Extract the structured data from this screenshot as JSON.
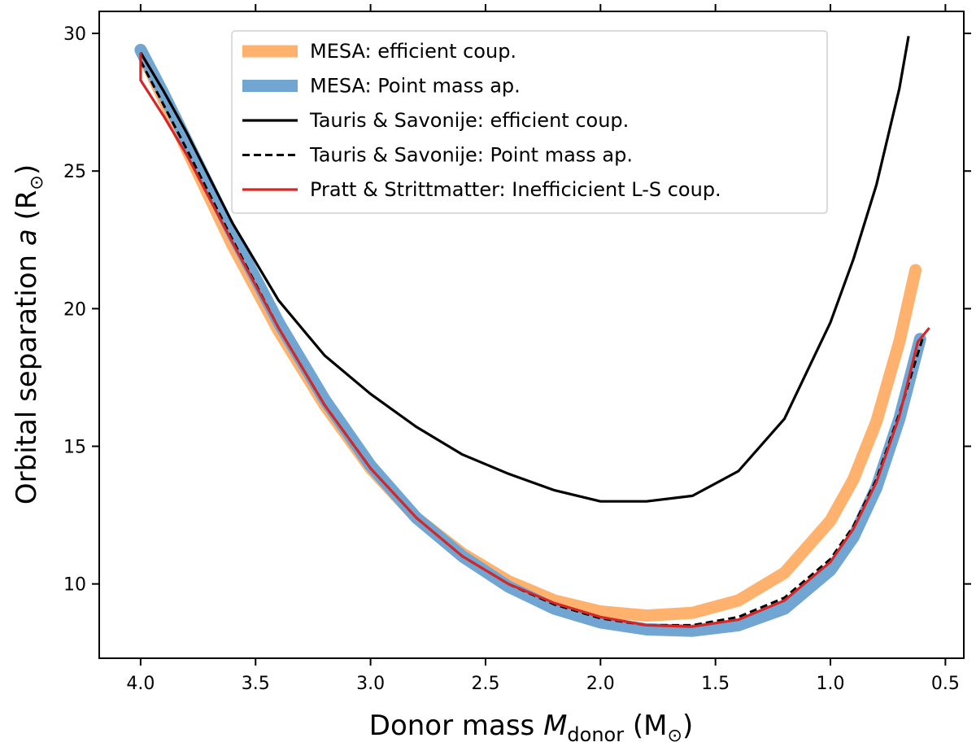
{
  "chart_data": {
    "type": "line",
    "title": "",
    "xlabel": {
      "prefix": "Donor mass ",
      "var": "M",
      "sub": "donor",
      "unit_open": " (M",
      "unit_sym": "⊙",
      "unit_close": ")"
    },
    "ylabel": {
      "prefix": "Orbital separation ",
      "var": "a",
      "unit_open": " (R",
      "unit_sym": "⊙",
      "unit_close": ")"
    },
    "xlim": [
      4.18,
      0.42
    ],
    "ylim": [
      7.3,
      30.8
    ],
    "x_inverted": true,
    "xticks": [
      4.0,
      3.5,
      3.0,
      2.5,
      2.0,
      1.5,
      1.0,
      0.5
    ],
    "xtick_labels": [
      "4.0",
      "3.5",
      "3.0",
      "2.5",
      "2.0",
      "1.5",
      "1.0",
      "0.5"
    ],
    "yticks": [
      10,
      15,
      20,
      25,
      30
    ],
    "ytick_labels": [
      "10",
      "15",
      "20",
      "25",
      "30"
    ],
    "grid": false,
    "legend_position": "upper-center",
    "series": [
      {
        "name": "MESA: efficient coup.",
        "color": "#ffb26e",
        "style": "thick",
        "x": [
          4.0,
          3.9,
          3.8,
          3.6,
          3.4,
          3.2,
          3.0,
          2.8,
          2.6,
          2.4,
          2.2,
          2.0,
          1.8,
          1.6,
          1.4,
          1.2,
          1.0,
          0.9,
          0.8,
          0.7,
          0.63
        ],
        "y": [
          29.4,
          27.6,
          25.8,
          22.3,
          19.2,
          16.5,
          14.2,
          12.4,
          11.1,
          10.1,
          9.4,
          9.0,
          8.85,
          8.95,
          9.4,
          10.4,
          12.3,
          13.8,
          15.9,
          18.8,
          21.4
        ]
      },
      {
        "name": "MESA: Point mass ap.",
        "color": "#72a6d2",
        "style": "thick",
        "x": [
          4.0,
          3.9,
          3.8,
          3.6,
          3.4,
          3.2,
          3.0,
          2.8,
          2.6,
          2.4,
          2.2,
          2.0,
          1.8,
          1.6,
          1.4,
          1.2,
          1.0,
          0.9,
          0.8,
          0.7,
          0.61
        ],
        "y": [
          29.4,
          27.8,
          26.1,
          22.7,
          19.5,
          16.7,
          14.3,
          12.4,
          11.0,
          9.9,
          9.1,
          8.6,
          8.35,
          8.3,
          8.5,
          9.1,
          10.5,
          11.7,
          13.5,
          16.0,
          18.9
        ]
      },
      {
        "name": "Tauris & Savonije: efficient coup.",
        "color": "#000000",
        "style": "solid",
        "x": [
          4.0,
          3.9,
          3.8,
          3.6,
          3.4,
          3.2,
          3.0,
          2.8,
          2.6,
          2.4,
          2.2,
          2.0,
          1.8,
          1.6,
          1.4,
          1.2,
          1.0,
          0.9,
          0.8,
          0.7,
          0.66
        ],
        "y": [
          29.3,
          27.9,
          26.4,
          23.1,
          20.3,
          18.3,
          16.9,
          15.7,
          14.7,
          14.0,
          13.4,
          13.0,
          13.0,
          13.2,
          14.1,
          16.0,
          19.5,
          21.8,
          24.5,
          28.0,
          29.9
        ]
      },
      {
        "name": "Tauris & Savonije: Point mass ap.",
        "color": "#000000",
        "style": "dashed",
        "x": [
          4.0,
          3.9,
          3.8,
          3.6,
          3.4,
          3.2,
          3.0,
          2.8,
          2.6,
          2.4,
          2.2,
          2.0,
          1.8,
          1.6,
          1.4,
          1.2,
          1.0,
          0.9,
          0.8,
          0.7,
          0.6
        ],
        "y": [
          29.0,
          27.4,
          25.8,
          22.5,
          19.3,
          16.5,
          14.2,
          12.4,
          11.0,
          10.0,
          9.25,
          8.75,
          8.5,
          8.5,
          8.8,
          9.5,
          10.9,
          12.1,
          13.8,
          16.2,
          18.9
        ]
      },
      {
        "name": "Pratt & Strittmatter: Inefficicient L-S coup.",
        "color": "#d62728",
        "style": "solid",
        "x": [
          4.0,
          4.0,
          3.9,
          3.8,
          3.6,
          3.4,
          3.2,
          3.0,
          2.8,
          2.6,
          2.4,
          2.2,
          2.0,
          1.8,
          1.6,
          1.4,
          1.2,
          1.0,
          0.9,
          0.8,
          0.7,
          0.62,
          0.57
        ],
        "y": [
          29.3,
          28.3,
          27.0,
          25.6,
          22.4,
          19.3,
          16.5,
          14.2,
          12.4,
          11.0,
          10.0,
          9.3,
          8.8,
          8.5,
          8.45,
          8.7,
          9.4,
          10.8,
          12.0,
          13.7,
          16.1,
          18.8,
          19.3
        ]
      }
    ]
  }
}
